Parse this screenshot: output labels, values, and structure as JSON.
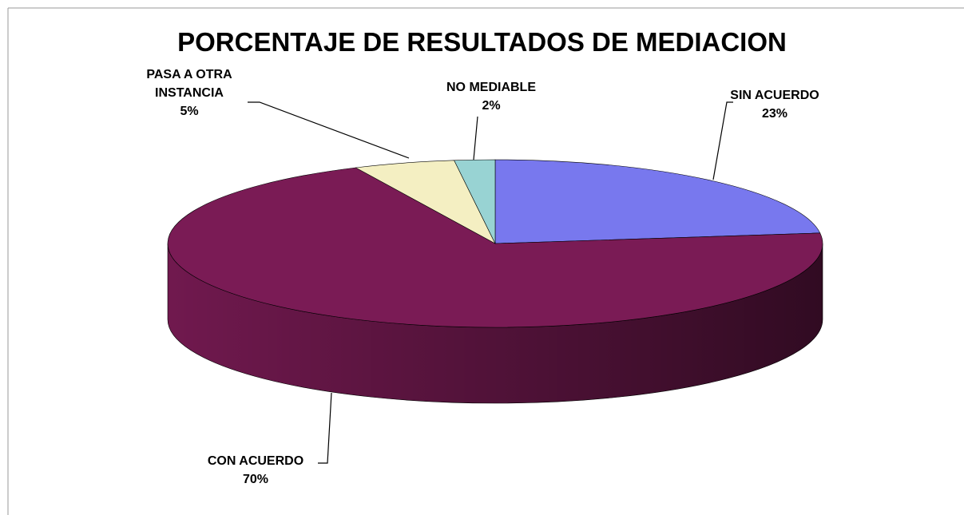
{
  "chart_data": {
    "type": "pie3d",
    "title": "PORCENTAJE DE RESULTADOS DE MEDIACION",
    "categories": [
      "SIN ACUERDO",
      "CON ACUERDO",
      "PASA A OTRA INSTANCIA",
      "NO MEDIABLE"
    ],
    "values": [
      23,
      70,
      5,
      2
    ],
    "value_labels": [
      "23%",
      "70%",
      "5%",
      "2%"
    ],
    "colors": [
      "#7878ee",
      "#7a1b55",
      "#f4efc2",
      "#98d3d3"
    ]
  }
}
